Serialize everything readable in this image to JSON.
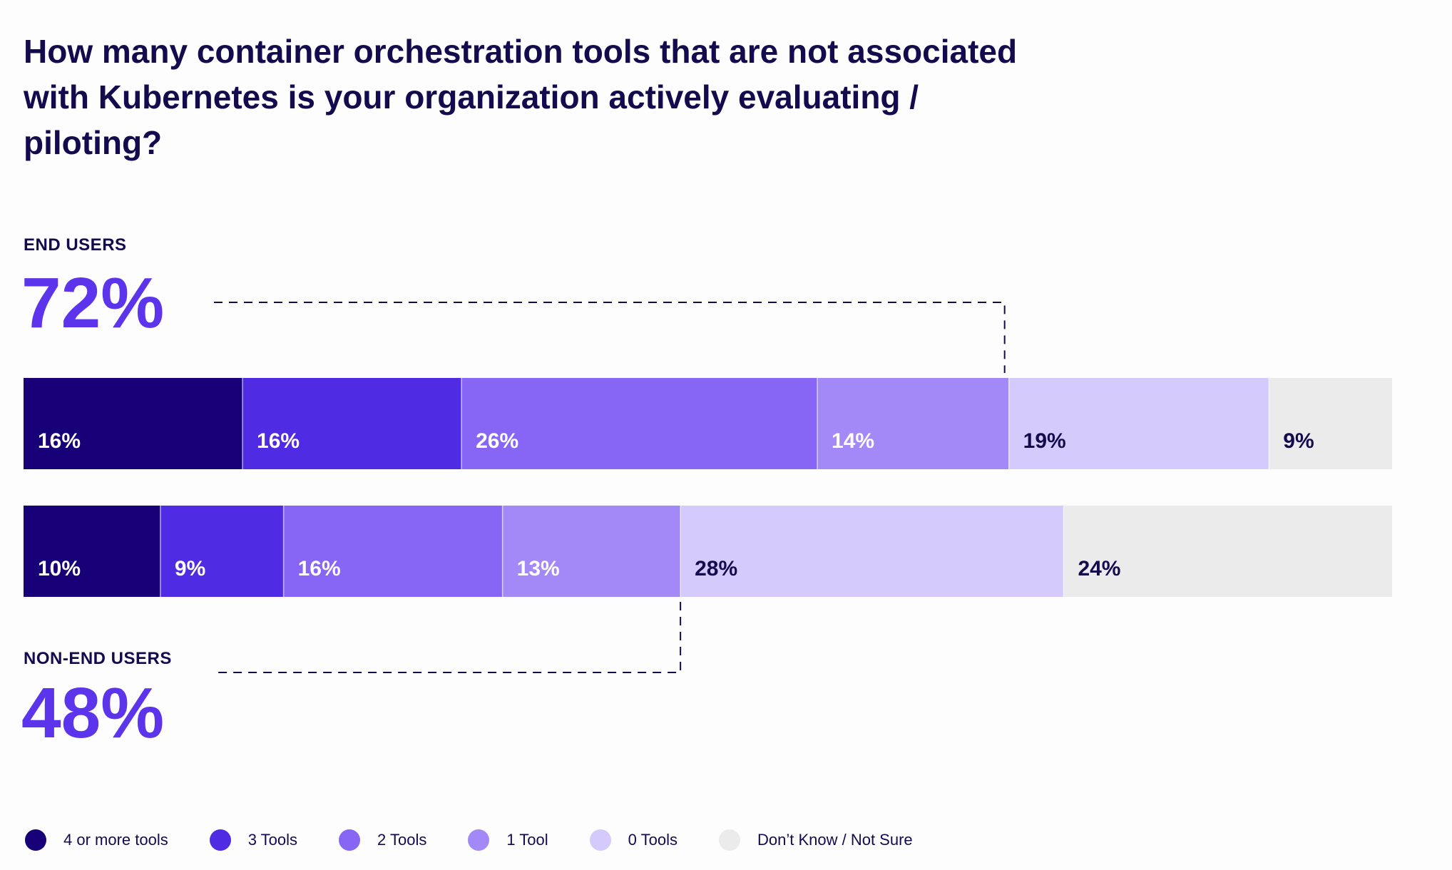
{
  "chart_data": {
    "type": "bar",
    "orientation": "horizontal",
    "stacked": true,
    "title": "How many container orchestration tools that are not associated with Kubernetes is your organization actively evaluating / piloting?",
    "categories": [
      "4 or more tools",
      "3 Tools",
      "2 Tools",
      "1 Tool",
      "0 Tools",
      "Don’t Know / Not Sure"
    ],
    "colors": [
      "#170078",
      "#4f2be3",
      "#8766f6",
      "#a388f7",
      "#d4cafb",
      "#ebebeb"
    ],
    "label_colors": [
      "#ffffff",
      "#ffffff",
      "#ffffff",
      "#ffffff",
      "#140a4e",
      "#140a4e"
    ],
    "series": [
      {
        "name": "END USERS",
        "summary": "72%",
        "values": [
          16,
          16,
          26,
          14,
          19,
          9
        ],
        "labels": [
          "16%",
          "16%",
          "26%",
          "14%",
          "19%",
          "9%"
        ]
      },
      {
        "name": "NON-END USERS",
        "summary": "48%",
        "values": [
          10,
          9,
          16,
          13,
          28,
          24
        ],
        "labels": [
          "10%",
          "9%",
          "16%",
          "13%",
          "28%",
          "24%"
        ]
      }
    ],
    "xlim": [
      0,
      100
    ]
  }
}
